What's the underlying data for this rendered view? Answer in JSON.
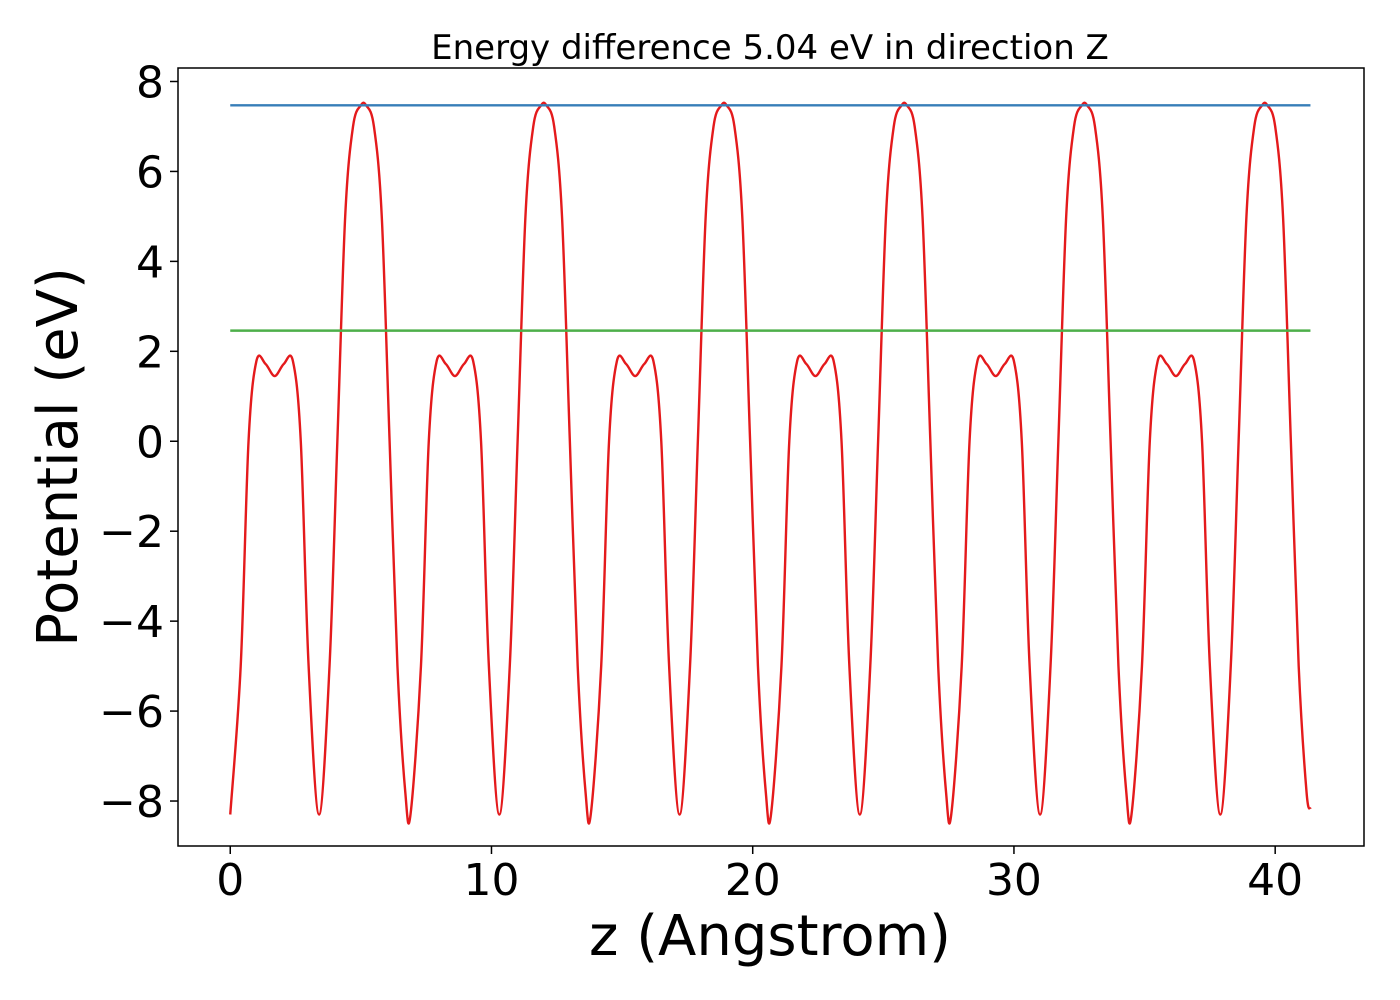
{
  "chart_data": {
    "type": "line",
    "title": "Energy difference 5.04 eV in direction Z",
    "xlabel": "z (Angstrom)",
    "ylabel": "Potential (eV)",
    "xlim": [
      -2.0,
      43.4
    ],
    "ylim": [
      -9.0,
      8.3
    ],
    "xticks": [
      0,
      10,
      20,
      30,
      40
    ],
    "xtick_labels": [
      "0",
      "10",
      "20",
      "30",
      "40"
    ],
    "yticks": [
      -8,
      -6,
      -4,
      -2,
      0,
      2,
      4,
      6,
      8
    ],
    "ytick_labels": [
      "−8",
      "−6",
      "−4",
      "−2",
      "0",
      "2",
      "4",
      "6",
      "8"
    ],
    "grid": false,
    "legend": "none",
    "series": [
      {
        "color": "#e41a1c",
        "kind": "periodic potential profile",
        "x_range": [
          0.0,
          41.35
        ],
        "period": 6.9,
        "minimum": -8.3,
        "maximum": 7.47,
        "x": [
          0.0,
          0.4,
          0.7,
          1.0,
          1.35,
          1.7,
          2.05,
          2.4,
          2.7,
          3.0,
          3.4,
          3.8,
          4.1,
          4.4,
          4.7,
          5.0,
          5.2,
          5.5,
          5.8,
          6.1,
          6.4,
          6.7,
          6.9
        ],
        "y_period": [
          -8.3,
          -5.0,
          0.0,
          1.78,
          1.72,
          1.45,
          1.72,
          1.78,
          0.0,
          -5.0,
          -8.3,
          -5.0,
          0.0,
          5.0,
          7.0,
          7.47,
          7.47,
          7.0,
          5.0,
          0.0,
          -5.0,
          -7.8,
          -8.3
        ]
      },
      {
        "color": "#377eb8",
        "kind": "horizontal line",
        "x": [
          0.0,
          41.35
        ],
        "y": [
          7.47,
          7.47
        ]
      },
      {
        "color": "#4daf4a",
        "kind": "horizontal line",
        "x": [
          0.0,
          41.35
        ],
        "y": [
          2.46,
          2.46
        ]
      }
    ]
  }
}
